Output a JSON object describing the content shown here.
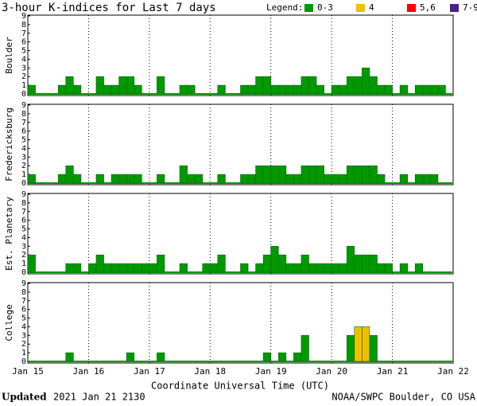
{
  "header": {
    "title": "3-hour K-indices for Last 7 days",
    "legend_title": "Legend:",
    "legend": [
      {
        "label": "0-3",
        "color": "#009900",
        "range": [
          0,
          3
        ]
      },
      {
        "label": "4",
        "color": "#f0c000",
        "range": [
          4,
          4
        ]
      },
      {
        "label": "5,6",
        "color": "#ff0000",
        "range": [
          5,
          6
        ]
      },
      {
        "label": "7-9",
        "color": "#4b1e8c",
        "range": [
          7,
          9
        ]
      }
    ]
  },
  "x_axis": {
    "labels": [
      "Jan 15",
      "Jan 16",
      "Jan 17",
      "Jan 18",
      "Jan 19",
      "Jan 20",
      "Jan 21",
      "Jan 22"
    ],
    "label": "Coordinate Universal Time (UTC)"
  },
  "footer": {
    "updated_label": "Updated",
    "updated_value": "2021 Jan 21 2130",
    "credit": "NOAA/SWPC Boulder, CO USA"
  },
  "chart_data": [
    {
      "type": "bar",
      "ylabel": "Boulder",
      "ylim": [
        0,
        9
      ],
      "yticks": [
        0,
        1,
        2,
        3,
        4,
        5,
        6,
        7,
        8,
        9
      ],
      "values": [
        1,
        0,
        0,
        0,
        1,
        2,
        1,
        0,
        0,
        2,
        1,
        1,
        2,
        2,
        1,
        0,
        0,
        2,
        0,
        0,
        1,
        1,
        0,
        0,
        0,
        1,
        0,
        0,
        1,
        1,
        2,
        2,
        1,
        1,
        1,
        1,
        2,
        2,
        1,
        0,
        1,
        1,
        2,
        2,
        3,
        2,
        1,
        1,
        0,
        1,
        0,
        1,
        1,
        1,
        1,
        0
      ]
    },
    {
      "type": "bar",
      "ylabel": "Fredericksburg",
      "ylim": [
        0,
        9
      ],
      "yticks": [
        0,
        1,
        2,
        3,
        4,
        5,
        6,
        7,
        8,
        9
      ],
      "values": [
        1,
        0,
        0,
        0,
        1,
        2,
        1,
        0,
        0,
        1,
        0,
        1,
        1,
        1,
        1,
        0,
        0,
        1,
        0,
        0,
        2,
        1,
        1,
        0,
        0,
        1,
        0,
        0,
        1,
        1,
        2,
        2,
        2,
        2,
        1,
        1,
        2,
        2,
        2,
        1,
        1,
        1,
        2,
        2,
        2,
        2,
        1,
        0,
        0,
        1,
        0,
        1,
        1,
        1,
        0,
        0
      ]
    },
    {
      "type": "bar",
      "ylabel": "Est. Planetary",
      "ylim": [
        0,
        9
      ],
      "yticks": [
        0,
        1,
        2,
        3,
        4,
        5,
        6,
        7,
        8,
        9
      ],
      "values": [
        2,
        0,
        0,
        0,
        0,
        1,
        1,
        0,
        1,
        2,
        1,
        1,
        1,
        1,
        1,
        1,
        1,
        2,
        0,
        0,
        1,
        0,
        0,
        1,
        1,
        2,
        0,
        0,
        1,
        0,
        1,
        2,
        3,
        2,
        1,
        1,
        2,
        1,
        1,
        1,
        1,
        1,
        3,
        2,
        2,
        2,
        1,
        1,
        0,
        1,
        0,
        1,
        0,
        0,
        0,
        0
      ]
    },
    {
      "type": "bar",
      "ylabel": "College",
      "ylim": [
        0,
        9
      ],
      "yticks": [
        0,
        1,
        2,
        3,
        4,
        5,
        6,
        7,
        8,
        9
      ],
      "values": [
        0,
        0,
        0,
        0,
        0,
        1,
        0,
        0,
        0,
        0,
        0,
        0,
        0,
        1,
        0,
        0,
        0,
        1,
        0,
        0,
        0,
        0,
        0,
        0,
        0,
        0,
        0,
        0,
        0,
        0,
        0,
        1,
        0,
        1,
        0,
        1,
        3,
        0,
        0,
        0,
        0,
        0,
        3,
        4,
        4,
        3,
        0,
        0,
        0,
        0,
        0,
        0,
        0,
        0,
        0,
        0
      ]
    }
  ]
}
